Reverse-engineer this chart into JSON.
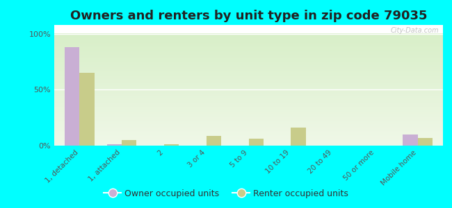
{
  "title": "Owners and renters by unit type in zip code 79035",
  "categories": [
    "1, detached",
    "1, attached",
    "2",
    "3 or 4",
    "5 to 9",
    "10 to 19",
    "20 to 49",
    "50 or more",
    "Mobile home"
  ],
  "owner_values": [
    88,
    1,
    0,
    0,
    0,
    0,
    0,
    0,
    10
  ],
  "renter_values": [
    65,
    5,
    1,
    9,
    6,
    16,
    0,
    0,
    7
  ],
  "owner_color": "#c9afd4",
  "renter_color": "#c8cc8a",
  "background_color": "#00ffff",
  "ylabel_ticks": [
    "0%",
    "50%",
    "100%"
  ],
  "yticks": [
    0,
    50,
    100
  ],
  "legend_owner": "Owner occupied units",
  "legend_renter": "Renter occupied units",
  "bar_width": 0.35,
  "title_fontsize": 13,
  "tick_fontsize": 7.5,
  "legend_fontsize": 9
}
